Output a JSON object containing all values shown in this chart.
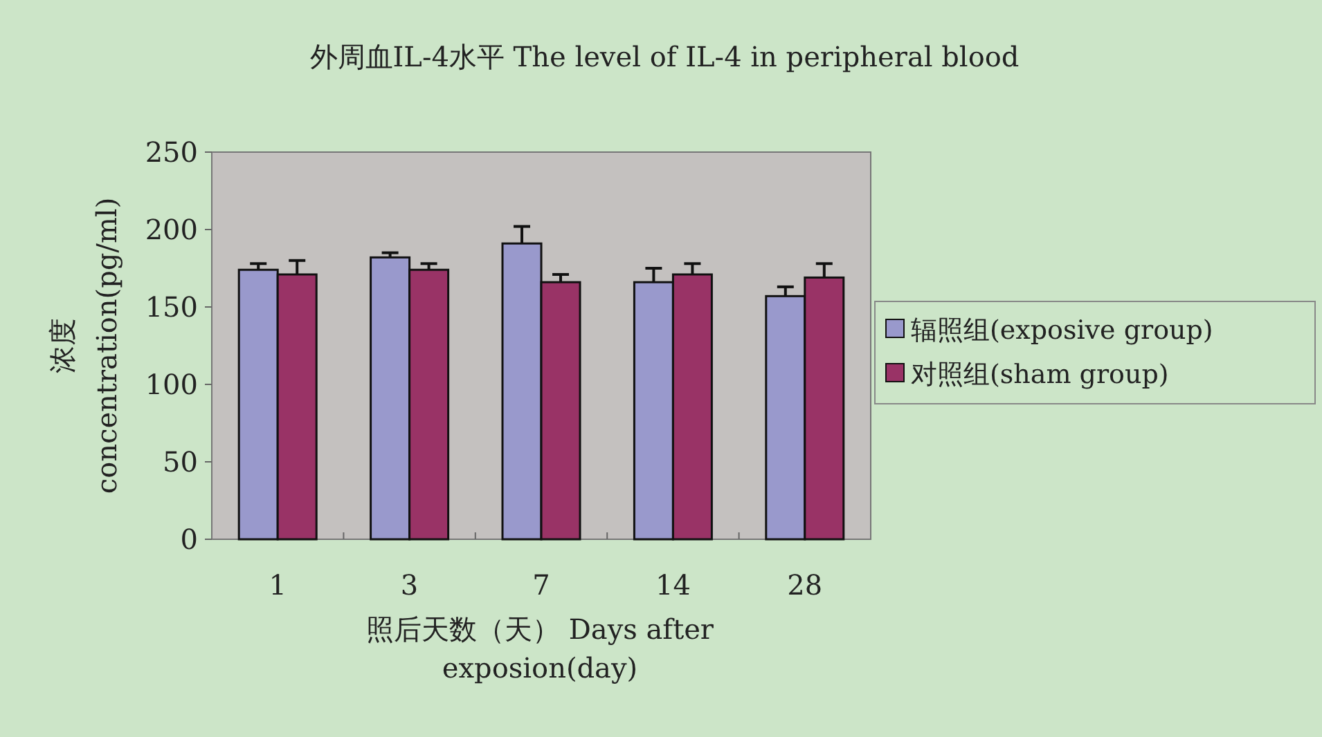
{
  "chart_data": {
    "type": "bar",
    "title": "外周血IL-4水平 The level of IL-4 in peripheral blood",
    "xlabel": "照后天数（天） Days after exposion(day)",
    "ylabel": "浓度 concentration(pg/ml)",
    "categories": [
      "1",
      "3",
      "7",
      "14",
      "28"
    ],
    "series": [
      {
        "name": "辐照组(exposive group)",
        "color": "#9999cc",
        "values": [
          174,
          182,
          191,
          166,
          157
        ],
        "errors": [
          4,
          3,
          11,
          9,
          6
        ]
      },
      {
        "name": "对照组(sham group)",
        "color": "#993366",
        "values": [
          171,
          174,
          166,
          171,
          169
        ],
        "errors": [
          9,
          4,
          5,
          7,
          9
        ]
      }
    ],
    "ylim": [
      0,
      250
    ],
    "yticks": [
      0,
      50,
      100,
      150,
      200,
      250
    ],
    "grid": false,
    "legend": "right"
  }
}
